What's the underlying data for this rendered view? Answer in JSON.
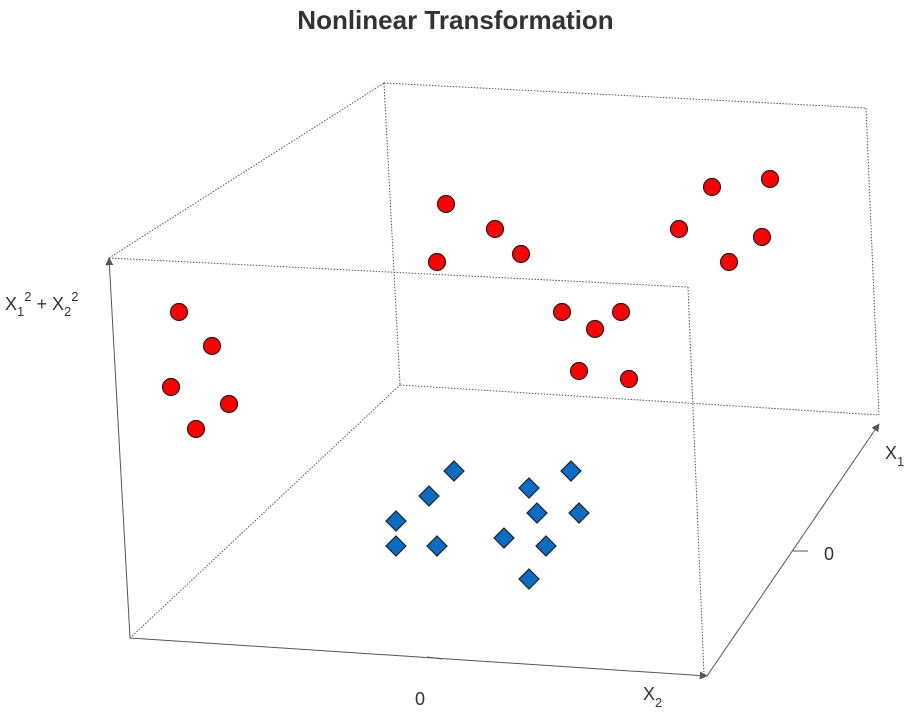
{
  "chart_data": {
    "type": "scatter",
    "title": "Nonlinear Transformation",
    "axes": {
      "x1": {
        "label_main": "X",
        "label_sub": "1",
        "ticks": [
          "0"
        ]
      },
      "x2": {
        "label_main": "X",
        "label_sub": "2",
        "ticks": [
          "0"
        ]
      },
      "z": {
        "parts": [
          {
            "main": "X",
            "sub": "1",
            "sup": "2"
          },
          {
            "op": "+"
          },
          {
            "main": "X",
            "sub": "2",
            "sup": "2"
          }
        ]
      }
    },
    "grid": false,
    "series": [
      {
        "marker": "circle",
        "color": "#ff0000",
        "projected_points": [
          [
            179,
            312
          ],
          [
            212,
            346
          ],
          [
            171,
            387
          ],
          [
            229,
            404
          ],
          [
            196,
            429
          ],
          [
            446,
            204
          ],
          [
            495,
            229
          ],
          [
            521,
            254
          ],
          [
            437,
            262
          ],
          [
            712,
            187
          ],
          [
            770,
            179
          ],
          [
            679,
            229
          ],
          [
            762,
            237
          ],
          [
            729,
            262
          ],
          [
            562,
            312
          ],
          [
            621,
            312
          ],
          [
            595,
            329
          ],
          [
            579,
            371
          ],
          [
            629,
            379
          ]
        ]
      },
      {
        "marker": "diamond",
        "color": "#0a6cc4",
        "projected_points": [
          [
            454,
            471
          ],
          [
            429,
            496
          ],
          [
            396,
            521
          ],
          [
            396,
            546
          ],
          [
            437,
            546
          ],
          [
            571,
            471
          ],
          [
            529,
            488
          ],
          [
            537,
            513
          ],
          [
            579,
            513
          ],
          [
            504,
            538
          ],
          [
            546,
            546
          ],
          [
            529,
            579
          ]
        ]
      }
    ]
  }
}
